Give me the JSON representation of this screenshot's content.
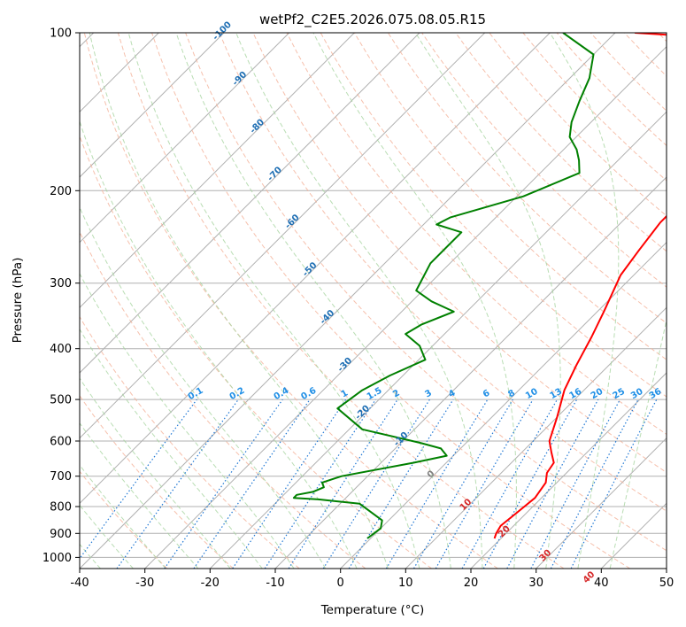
{
  "chart_data": {
    "type": "line",
    "title": "wetPf2_C2E5.2026.075.08.05.R15",
    "xlabel": "Temperature (°C)",
    "ylabel": "Pressure (hPa)",
    "xlim": [
      -40,
      50
    ],
    "ylim": [
      1050,
      100
    ],
    "y_scale": "log",
    "skew": true,
    "grid": true,
    "x_ticks": [
      -40,
      -30,
      -20,
      -10,
      0,
      10,
      20,
      30,
      40,
      50
    ],
    "y_ticks": [
      100,
      200,
      300,
      400,
      500,
      600,
      700,
      800,
      900,
      1000
    ],
    "series": [
      {
        "color": "#ff0000",
        "x": [
          19,
          18.5,
          18,
          18.5,
          19,
          18.3,
          17,
          16.5,
          14.5,
          12.5,
          10,
          7,
          5,
          3,
          1,
          -2,
          -3,
          -4,
          -4,
          -8,
          -10,
          -11,
          -11,
          -16,
          -21,
          -25,
          -29,
          -31,
          -37
        ],
        "y": [
          920,
          900,
          870,
          820,
          770,
          720,
          690,
          660,
          630,
          600,
          540,
          480,
          430,
          380,
          340,
          290,
          260,
          230,
          205,
          185,
          165,
          148,
          136,
          125,
          116,
          109,
          104,
          101,
          100
        ]
      },
      {
        "color": "#008000",
        "x": [
          -0.5,
          0,
          -1,
          -7,
          -14,
          -18,
          -18,
          -16,
          -15,
          -16,
          -14,
          -5,
          -1,
          -3,
          -7,
          -18,
          -25,
          -24,
          -22,
          -19,
          -22,
          -26,
          -25,
          -22,
          -27,
          -31,
          -33,
          -33,
          -38,
          -37,
          -29,
          -24,
          -26,
          -28,
          -31,
          -33,
          -35,
          -37,
          -40,
          -48
        ],
        "y": [
          920,
          880,
          850,
          790,
          775,
          770,
          760,
          750,
          735,
          720,
          700,
          660,
          640,
          620,
          605,
          570,
          520,
          480,
          450,
          420,
          395,
          375,
          360,
          340,
          325,
          310,
          275,
          240,
          232,
          225,
          205,
          185,
          175,
          167,
          158,
          148,
          135,
          122,
          110,
          100
        ]
      }
    ],
    "dry_adiabat_labels": [
      "-100",
      "-90",
      "-80",
      "-70",
      "-60",
      "-50",
      "-40",
      "-30",
      "-20",
      "-10",
      "0",
      "10",
      "20",
      "30",
      "40"
    ],
    "mixing_ratio_labels": [
      "0.1",
      "0.2",
      "0.4",
      "0.6",
      "1",
      "1.5",
      "2",
      "3",
      "4",
      "6",
      "8",
      "10",
      "13",
      "16",
      "20",
      "25",
      "30",
      "36"
    ],
    "mixing_ratio_values": [
      0.1,
      0.2,
      0.4,
      0.6,
      1,
      1.5,
      2,
      3,
      4,
      6,
      8,
      10,
      13,
      16,
      20,
      25,
      30,
      36
    ]
  }
}
